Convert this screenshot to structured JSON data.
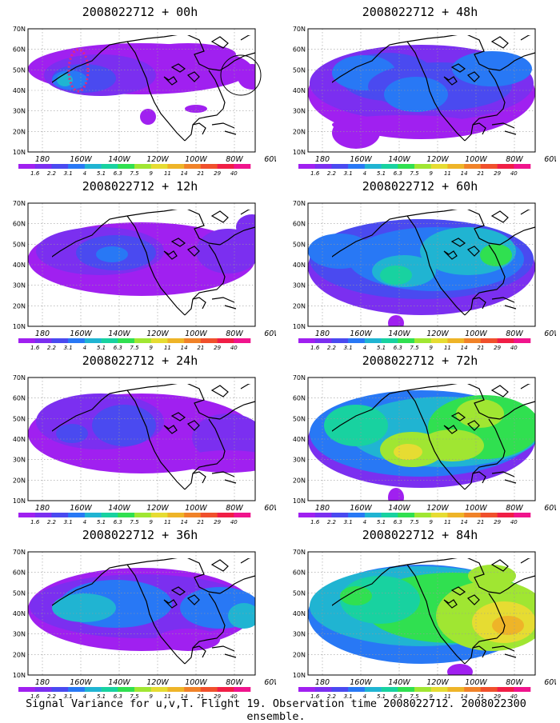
{
  "caption": "Signal Variance for u,v,T. Flight 19. Observation time 2008022712. 2008022300 ensemble.",
  "lat_labels": [
    "70N",
    "60N",
    "50N",
    "40N",
    "30N",
    "20N",
    "10N"
  ],
  "lon_labels": [
    "180",
    "160W",
    "140W",
    "120W",
    "100W",
    "80W",
    "60W"
  ],
  "colorbar": {
    "labels": [
      "1.6",
      "2.2",
      "3.1",
      "4",
      "5.1",
      "6.3",
      "7.5",
      "9",
      "11",
      "14",
      "21",
      "29",
      "40"
    ],
    "colors": [
      "#a020f0",
      "#7b2ff0",
      "#4a4af0",
      "#2878f5",
      "#20b4d2",
      "#18d2a0",
      "#30e050",
      "#a0e632",
      "#e6dc32",
      "#eeb428",
      "#f08228",
      "#f0502c",
      "#f01e46",
      "#f0148c"
    ]
  },
  "panels": [
    {
      "title": "2008022712 + 00h"
    },
    {
      "title": "2008022712 + 48h"
    },
    {
      "title": "2008022712 + 12h"
    },
    {
      "title": "2008022712 + 60h"
    },
    {
      "title": "2008022712 + 24h"
    },
    {
      "title": "2008022712 + 72h"
    },
    {
      "title": "2008022712 + 36h"
    },
    {
      "title": "2008022712 + 84h"
    }
  ]
}
